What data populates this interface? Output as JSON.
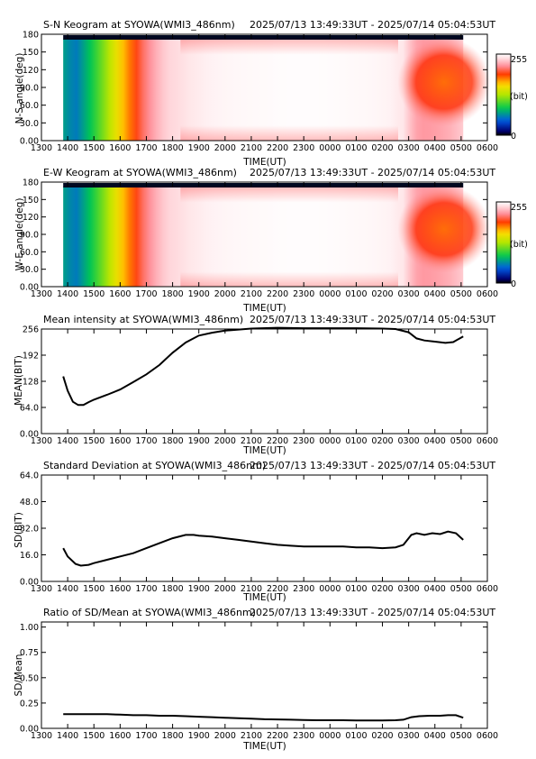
{
  "shared": {
    "xlabel": "TIME(UT)",
    "x_ticks": [
      "1300",
      "1400",
      "1500",
      "1600",
      "1700",
      "1800",
      "1900",
      "2000",
      "2100",
      "2200",
      "2300",
      "0000",
      "0100",
      "0200",
      "0300",
      "0400",
      "0500",
      "0600"
    ],
    "range": "2025/07/13 13:49:33UT - 2025/07/14 05:04:53UT"
  },
  "colorbar": {
    "max_label": "255",
    "mid_label": "(bit)",
    "min_label": "0"
  },
  "chart_data": [
    {
      "type": "heatmap",
      "title": "S-N Keogram at SYOWA(WMI3_486nm)",
      "xlabel": "TIME(UT)",
      "ylabel": "N-S angle(deg)",
      "y_ticks": [
        "0.00",
        "30.0",
        "60.0",
        "90.0",
        "120",
        "150",
        "180"
      ],
      "ylim": [
        0,
        180
      ],
      "xlim": [
        13.0,
        30.0
      ],
      "data_x_range": [
        13.83,
        29.08
      ],
      "colorscale_range": [
        0,
        255
      ],
      "time_profile": [
        [
          13.83,
          70
        ],
        [
          14.3,
          55
        ],
        [
          14.8,
          80
        ],
        [
          15.3,
          110
        ],
        [
          15.8,
          145
        ],
        [
          16.3,
          175
        ],
        [
          16.8,
          205
        ],
        [
          17.3,
          225
        ],
        [
          17.8,
          238
        ],
        [
          18.3,
          242
        ],
        [
          18.6,
          245
        ],
        [
          19.5,
          250
        ],
        [
          20.5,
          252
        ],
        [
          21.5,
          253
        ],
        [
          22.5,
          254
        ],
        [
          23.5,
          254
        ],
        [
          24.5,
          253
        ],
        [
          25.5,
          252
        ],
        [
          26.3,
          250
        ],
        [
          26.8,
          245
        ],
        [
          27.2,
          225
        ],
        [
          27.6,
          220
        ],
        [
          28.0,
          222
        ],
        [
          28.5,
          226
        ],
        [
          29.08,
          235
        ]
      ]
    },
    {
      "type": "heatmap",
      "title": "E-W Keogram at SYOWA(WMI3_486nm)",
      "xlabel": "TIME(UT)",
      "ylabel": "W-E angle(deg)",
      "y_ticks": [
        "0.00",
        "30.0",
        "60.0",
        "90.0",
        "120",
        "150",
        "180"
      ],
      "ylim": [
        0,
        180
      ],
      "xlim": [
        13.0,
        30.0
      ],
      "data_x_range": [
        13.83,
        29.08
      ],
      "colorscale_range": [
        0,
        255
      ],
      "time_profile": [
        [
          13.83,
          70
        ],
        [
          14.3,
          55
        ],
        [
          14.8,
          80
        ],
        [
          15.3,
          110
        ],
        [
          15.8,
          145
        ],
        [
          16.3,
          175
        ],
        [
          16.8,
          205
        ],
        [
          17.3,
          225
        ],
        [
          17.8,
          238
        ],
        [
          18.3,
          242
        ],
        [
          18.6,
          245
        ],
        [
          19.5,
          250
        ],
        [
          20.5,
          252
        ],
        [
          21.5,
          253
        ],
        [
          22.5,
          254
        ],
        [
          23.5,
          254
        ],
        [
          24.5,
          253
        ],
        [
          25.5,
          252
        ],
        [
          26.3,
          250
        ],
        [
          26.8,
          245
        ],
        [
          27.2,
          225
        ],
        [
          27.6,
          220
        ],
        [
          28.0,
          222
        ],
        [
          28.5,
          226
        ],
        [
          29.08,
          235
        ]
      ]
    },
    {
      "type": "line",
      "title": "Mean intensity at SYOWA(WMI3_486nm)",
      "xlabel": "TIME(UT)",
      "ylabel": "MEAN(BIT)",
      "y_ticks": [
        "0.00",
        "64.0",
        "128",
        "192",
        "256"
      ],
      "ylim": [
        0,
        256
      ],
      "xlim": [
        13.0,
        30.0
      ],
      "points": [
        [
          13.83,
          140
        ],
        [
          14.0,
          105
        ],
        [
          14.2,
          78
        ],
        [
          14.4,
          70
        ],
        [
          14.6,
          70
        ],
        [
          14.8,
          77
        ],
        [
          15.0,
          83
        ],
        [
          15.5,
          95
        ],
        [
          16.0,
          108
        ],
        [
          16.5,
          126
        ],
        [
          17.0,
          145
        ],
        [
          17.5,
          168
        ],
        [
          18.0,
          198
        ],
        [
          18.5,
          223
        ],
        [
          19.0,
          240
        ],
        [
          19.5,
          247
        ],
        [
          20.0,
          252
        ],
        [
          21.0,
          257
        ],
        [
          22.0,
          259
        ],
        [
          23.0,
          258
        ],
        [
          24.0,
          258
        ],
        [
          25.0,
          258
        ],
        [
          26.0,
          257
        ],
        [
          26.5,
          256
        ],
        [
          27.0,
          248
        ],
        [
          27.3,
          233
        ],
        [
          27.6,
          228
        ],
        [
          28.0,
          225
        ],
        [
          28.4,
          222
        ],
        [
          28.7,
          224
        ],
        [
          29.08,
          238
        ]
      ]
    },
    {
      "type": "line",
      "title": "Standard Deviation at SYOWA(WMI3_486nm)",
      "xlabel": "TIME(UT)",
      "ylabel": "SD(BIT)",
      "y_ticks": [
        "0.00",
        "16.0",
        "32.0",
        "48.0",
        "64.0"
      ],
      "ylim": [
        0,
        64
      ],
      "xlim": [
        13.0,
        30.0
      ],
      "points": [
        [
          13.83,
          20
        ],
        [
          14.0,
          15
        ],
        [
          14.3,
          10.5
        ],
        [
          14.5,
          9.5
        ],
        [
          14.8,
          10
        ],
        [
          15.0,
          11
        ],
        [
          15.5,
          13
        ],
        [
          16.0,
          15
        ],
        [
          16.5,
          17
        ],
        [
          17.0,
          20
        ],
        [
          17.5,
          23
        ],
        [
          18.0,
          26
        ],
        [
          18.5,
          28
        ],
        [
          18.8,
          28
        ],
        [
          19.0,
          27.5
        ],
        [
          19.5,
          27
        ],
        [
          20.0,
          26
        ],
        [
          20.5,
          25
        ],
        [
          21.0,
          24
        ],
        [
          21.5,
          23
        ],
        [
          22.0,
          22
        ],
        [
          22.5,
          21.5
        ],
        [
          23.0,
          21
        ],
        [
          24.0,
          21
        ],
        [
          24.5,
          21
        ],
        [
          25.0,
          20.5
        ],
        [
          25.5,
          20.5
        ],
        [
          26.0,
          20
        ],
        [
          26.5,
          20.5
        ],
        [
          26.8,
          22
        ],
        [
          27.1,
          28
        ],
        [
          27.3,
          29
        ],
        [
          27.6,
          28
        ],
        [
          27.9,
          29
        ],
        [
          28.2,
          28.5
        ],
        [
          28.5,
          30
        ],
        [
          28.8,
          29
        ],
        [
          29.08,
          25
        ]
      ]
    },
    {
      "type": "line",
      "title": "Ratio of SD/Mean at SYOWA(WMI3_486nm)",
      "xlabel": "TIME(UT)",
      "ylabel": "SD/Mean",
      "y_ticks": [
        "0.00",
        "0.25",
        "0.50",
        "0.75",
        "1.00"
      ],
      "ylim": [
        0,
        1.05
      ],
      "xlim": [
        13.0,
        30.0
      ],
      "points": [
        [
          13.83,
          0.14
        ],
        [
          14.5,
          0.14
        ],
        [
          15.0,
          0.14
        ],
        [
          15.5,
          0.14
        ],
        [
          16.0,
          0.135
        ],
        [
          16.5,
          0.13
        ],
        [
          17.0,
          0.13
        ],
        [
          17.5,
          0.125
        ],
        [
          18.0,
          0.125
        ],
        [
          18.5,
          0.12
        ],
        [
          19.0,
          0.115
        ],
        [
          19.5,
          0.11
        ],
        [
          20.0,
          0.105
        ],
        [
          20.5,
          0.1
        ],
        [
          21.0,
          0.095
        ],
        [
          21.5,
          0.09
        ],
        [
          22.0,
          0.088
        ],
        [
          22.5,
          0.085
        ],
        [
          23.0,
          0.083
        ],
        [
          23.5,
          0.08
        ],
        [
          24.0,
          0.08
        ],
        [
          24.5,
          0.08
        ],
        [
          25.0,
          0.078
        ],
        [
          25.5,
          0.077
        ],
        [
          26.0,
          0.077
        ],
        [
          26.5,
          0.08
        ],
        [
          26.8,
          0.085
        ],
        [
          27.1,
          0.11
        ],
        [
          27.4,
          0.12
        ],
        [
          27.8,
          0.125
        ],
        [
          28.2,
          0.125
        ],
        [
          28.5,
          0.13
        ],
        [
          28.8,
          0.13
        ],
        [
          29.08,
          0.105
        ]
      ]
    }
  ]
}
